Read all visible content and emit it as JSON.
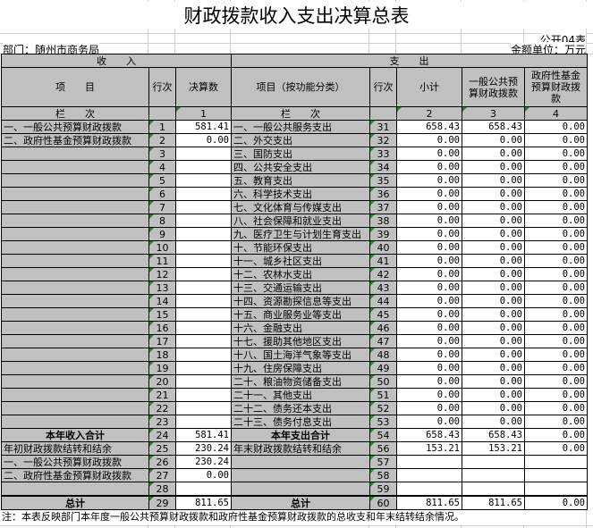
{
  "title": "财政拨款收入支出决算总表",
  "form_no": "公开04表",
  "department": "部门：随州市商务局",
  "unit": "金额单位：万元",
  "headers": {
    "income": "收　　入",
    "expense": "支　　出",
    "item": "项　　目",
    "line": "行次",
    "amount": "决算数",
    "exp_item": "项目（按功能分类）",
    "exp_line": "行次",
    "subtotal": "小计",
    "general": "一般公共预算财政拨款",
    "fund": "政府性基金预算财政拨款",
    "col_label": "栏　　次",
    "col1": "1",
    "col_label2": "栏　　次",
    "col2": "2",
    "col3": "3",
    "col4": "4"
  },
  "rows": [
    [
      "一、一般公共预算财政拨款",
      "1",
      "581.41",
      "一、一般公共服务支出",
      "31",
      "658.43",
      "658.43",
      "0.00"
    ],
    [
      "二、政府性基金预算财政拨款",
      "2",
      "0.00",
      "二、外交支出",
      "32",
      "0.00",
      "0.00",
      "0.00"
    ],
    [
      "",
      "3",
      "",
      "三、国防支出",
      "33",
      "0.00",
      "0.00",
      "0.00"
    ],
    [
      "",
      "4",
      "",
      "四、公共安全支出",
      "34",
      "0.00",
      "0.00",
      "0.00"
    ],
    [
      "",
      "5",
      "",
      "五、教育支出",
      "35",
      "0.00",
      "0.00",
      "0.00"
    ],
    [
      "",
      "6",
      "",
      "六、科学技术支出",
      "36",
      "0.00",
      "0.00",
      "0.00"
    ],
    [
      "",
      "7",
      "",
      "七、文化体育与传媒支出",
      "37",
      "0.00",
      "0.00",
      "0.00"
    ],
    [
      "",
      "8",
      "",
      "八、社会保障和就业支出",
      "38",
      "0.00",
      "0.00",
      "0.00"
    ],
    [
      "",
      "9",
      "",
      "九、医疗卫生与计划生育支出",
      "39",
      "0.00",
      "0.00",
      "0.00"
    ],
    [
      "",
      "10",
      "",
      "十、节能环保支出",
      "40",
      "0.00",
      "0.00",
      "0.00"
    ],
    [
      "",
      "11",
      "",
      "十一、城乡社区支出",
      "41",
      "0.00",
      "0.00",
      "0.00"
    ],
    [
      "",
      "12",
      "",
      "十二、农林水支出",
      "42",
      "0.00",
      "0.00",
      "0.00"
    ],
    [
      "",
      "13",
      "",
      "十三、交通运输支出",
      "43",
      "0.00",
      "0.00",
      "0.00"
    ],
    [
      "",
      "14",
      "",
      "十四、资源勘探信息等支出",
      "44",
      "0.00",
      "0.00",
      "0.00"
    ],
    [
      "",
      "15",
      "",
      "十五、商业服务业等支出",
      "45",
      "0.00",
      "0.00",
      "0.00"
    ],
    [
      "",
      "16",
      "",
      "十六、金融支出",
      "46",
      "0.00",
      "0.00",
      "0.00"
    ],
    [
      "",
      "17",
      "",
      "十七、援助其他地区支出",
      "47",
      "0.00",
      "0.00",
      "0.00"
    ],
    [
      "",
      "18",
      "",
      "十八、国土海洋气象等支出",
      "48",
      "0.00",
      "0.00",
      "0.00"
    ],
    [
      "",
      "19",
      "",
      "十九、住房保障支出",
      "49",
      "0.00",
      "0.00",
      "0.00"
    ],
    [
      "",
      "20",
      "",
      "二十、粮油物资储备支出",
      "50",
      "0.00",
      "0.00",
      "0.00"
    ],
    [
      "",
      "21",
      "",
      "二十一、其他支出",
      "51",
      "0.00",
      "0.00",
      "0.00"
    ],
    [
      "",
      "22",
      "",
      "二十二、债务还本支出",
      "52",
      "0.00",
      "0.00",
      "0.00"
    ],
    [
      "",
      "23",
      "",
      "二十三、债务付息支出",
      "53",
      "0.00",
      "0.00",
      "0.00"
    ],
    [
      "本年收入合计",
      "24",
      "581.41",
      "本年支出合计",
      "54",
      "658.43",
      "658.43",
      "0.00"
    ],
    [
      "年初财政拨款结转和结余",
      "25",
      "230.24",
      "年末财政拨款结转和结余",
      "56",
      "153.21",
      "153.21",
      "0.00"
    ],
    [
      "一、一般公共预算财政拨款",
      "26",
      "230.24",
      "",
      "57",
      "",
      "",
      ""
    ],
    [
      "二、政府性基金预算财政拨款",
      "27",
      "0.00",
      "",
      "58",
      "",
      "",
      ""
    ],
    [
      "",
      "28",
      "",
      "",
      "59",
      "",
      "",
      ""
    ],
    [
      "总计",
      "29",
      "811.65",
      "总计",
      "60",
      "811.65",
      "811.65",
      "0.00"
    ]
  ],
  "note": "注：本表反映部门本年度一般公共预算财政拨款和政府性基金预算财政拨款的总收支和年末结转结余情况。"
}
